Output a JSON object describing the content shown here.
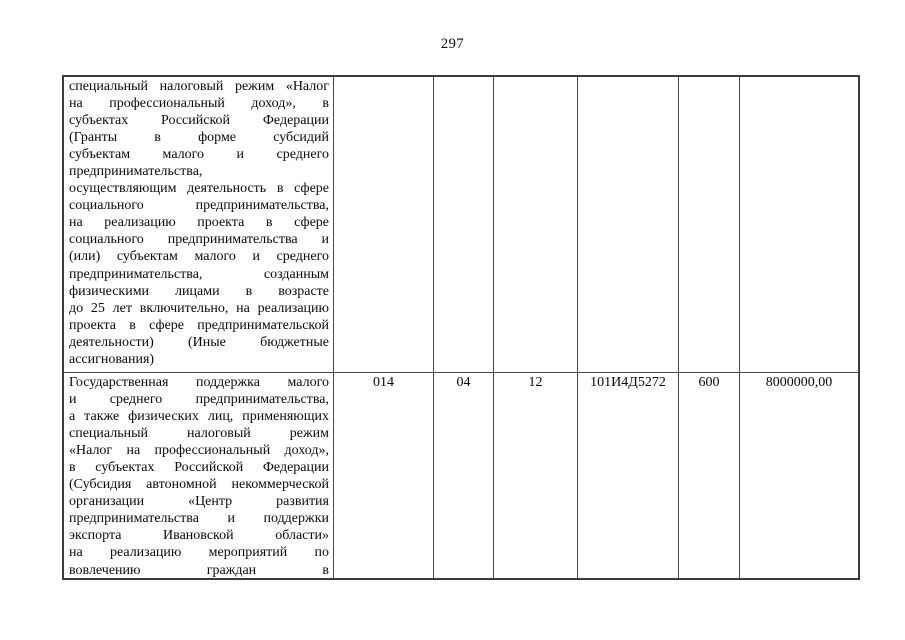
{
  "page_number": "297",
  "table": {
    "rows": [
      {
        "name_lines": [
          {
            "text": "специальный налоговый режим «Налог",
            "stretch": true
          },
          {
            "text": "на профессиональный доход», в",
            "stretch": true
          },
          {
            "text": "субъектах Российской Федерации",
            "stretch": true
          },
          {
            "text": "(Гранты в форме субсидий",
            "stretch": true
          },
          {
            "text": "субъектам малого и среднего",
            "stretch": true
          },
          {
            "text": "предпринимательства,",
            "stretch": false
          },
          {
            "text": "осуществляющим деятельность в сфере",
            "stretch": true
          },
          {
            "text": "социального предпринимательства,",
            "stretch": true
          },
          {
            "text": "на реализацию проекта в сфере",
            "stretch": true
          },
          {
            "text": "социального предпринимательства и",
            "stretch": true
          },
          {
            "text": "(или) субъектам малого и среднего",
            "stretch": true
          },
          {
            "text": "предпринимательства, созданным",
            "stretch": true
          },
          {
            "text": "физическими лицами в возрасте",
            "stretch": true
          },
          {
            "text": "до 25 лет включительно, на реализацию",
            "stretch": true
          },
          {
            "text": "проекта в сфере предпринимательской",
            "stretch": true
          },
          {
            "text": "деятельности) (Иные бюджетные",
            "stretch": true
          },
          {
            "text": "ассигнования)",
            "stretch": false
          }
        ],
        "values": [
          "",
          "",
          "",
          "",
          "",
          ""
        ]
      },
      {
        "name_lines": [
          {
            "text": "Государственная поддержка малого",
            "stretch": true
          },
          {
            "text": "и среднего предпринимательства,",
            "stretch": true
          },
          {
            "text": "а также физических лиц, применяющих",
            "stretch": true
          },
          {
            "text": "специальный налоговый режим",
            "stretch": true
          },
          {
            "text": "«Налог на профессиональный доход»,",
            "stretch": true
          },
          {
            "text": "в субъектах Российской Федерации",
            "stretch": true
          },
          {
            "text": "(Субсидия автономной некоммерческой",
            "stretch": true
          },
          {
            "text": "организации «Центр развития",
            "stretch": true
          },
          {
            "text": "предпринимательства и поддержки",
            "stretch": true
          },
          {
            "text": "экспорта Ивановской области»",
            "stretch": true
          },
          {
            "text": "на реализацию мероприятий по",
            "stretch": true
          },
          {
            "text": "вовлечению граждан в",
            "stretch": true
          }
        ],
        "values": [
          "014",
          "04",
          "12",
          "101И4Д5272",
          "600",
          "8000000,00"
        ]
      }
    ]
  }
}
